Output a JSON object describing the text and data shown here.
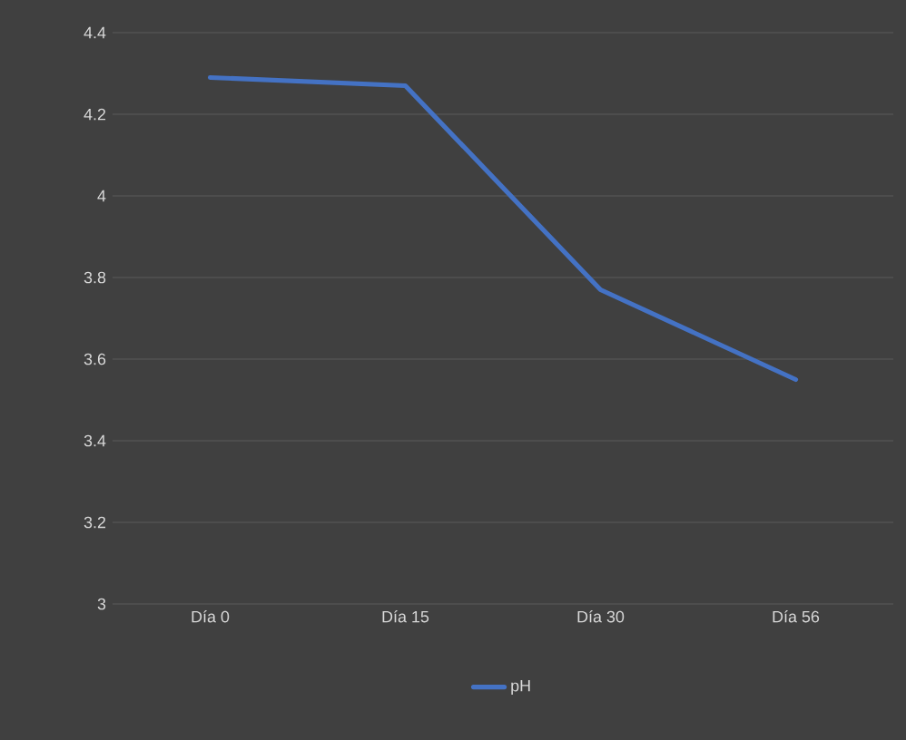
{
  "chart_data": {
    "type": "line",
    "categories": [
      "Día 0",
      "Día 15",
      "Día 30",
      "Día 56"
    ],
    "series": [
      {
        "name": "pH",
        "color": "#4472c4",
        "values": [
          4.29,
          4.27,
          3.77,
          3.55
        ]
      }
    ],
    "ylim": [
      3,
      4.4
    ],
    "yticks": [
      3,
      3.2,
      3.4,
      3.6,
      3.8,
      4,
      4.2,
      4.4
    ],
    "grid": "y",
    "legend": "bottom",
    "marker": "none",
    "line_style": "solid"
  }
}
